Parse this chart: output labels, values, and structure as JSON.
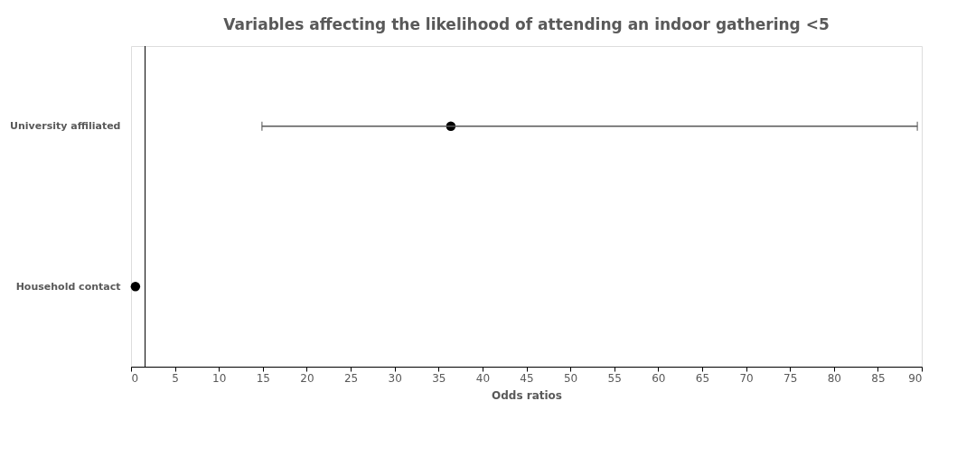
{
  "chart_data": {
    "type": "scatter",
    "title": "Variables affecting the likelihood of attending an indoor gathering <5",
    "xlabel": "Odds ratios",
    "categories": [
      "University affiliated",
      "Household contact"
    ],
    "orientation": "horizontal",
    "series": [
      {
        "color": "#000000",
        "values": [
          36.4,
          0.5
        ],
        "errors": [
          [
            14.9,
            89.5
          ],
          null
        ]
      }
    ],
    "xlim": [
      0,
      90
    ],
    "xticks": [
      0,
      5,
      10,
      15,
      20,
      25,
      30,
      35,
      40,
      45,
      50,
      55,
      60,
      65,
      70,
      75,
      80,
      85,
      90
    ],
    "ref_lines": [
      {
        "axis": "x",
        "value": 1.6,
        "color": "#000000"
      }
    ],
    "marker": "circle"
  }
}
